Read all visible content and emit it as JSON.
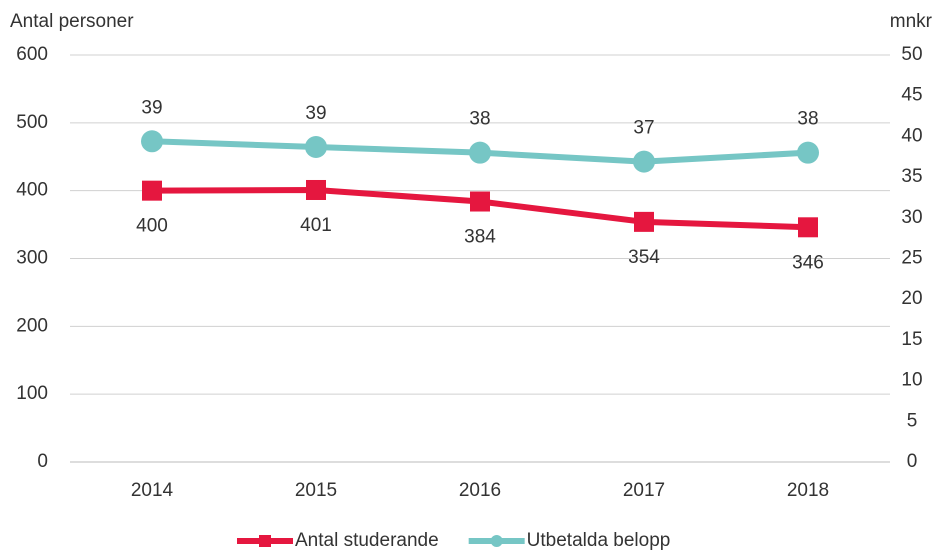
{
  "chart_data": {
    "type": "line",
    "y_label": "Antal personer",
    "y2_label": "mnkr",
    "categories": [
      "2014",
      "2015",
      "2016",
      "2017",
      "2018"
    ],
    "series": [
      {
        "name": "Antal studerande",
        "color": "#e5173f",
        "marker": "square",
        "values": [
          400,
          401,
          384,
          354,
          346
        ]
      },
      {
        "name": "Utbetalda belopp",
        "color": "#76c6c5",
        "marker": "circle",
        "axis": "y2",
        "values": [
          39.4,
          38.7,
          38.0,
          36.9,
          38.0
        ],
        "value_labels": [
          "39",
          "39",
          "38",
          "37",
          "38"
        ]
      }
    ],
    "ylim": [
      0,
      600
    ],
    "yticks": [
      0,
      100,
      200,
      300,
      400,
      500,
      600
    ],
    "y2lim": [
      0,
      50
    ],
    "y2ticks": [
      0,
      5,
      10,
      15,
      20,
      25,
      30,
      35,
      40,
      45,
      50
    ],
    "grid": true,
    "legend": "bottom"
  }
}
